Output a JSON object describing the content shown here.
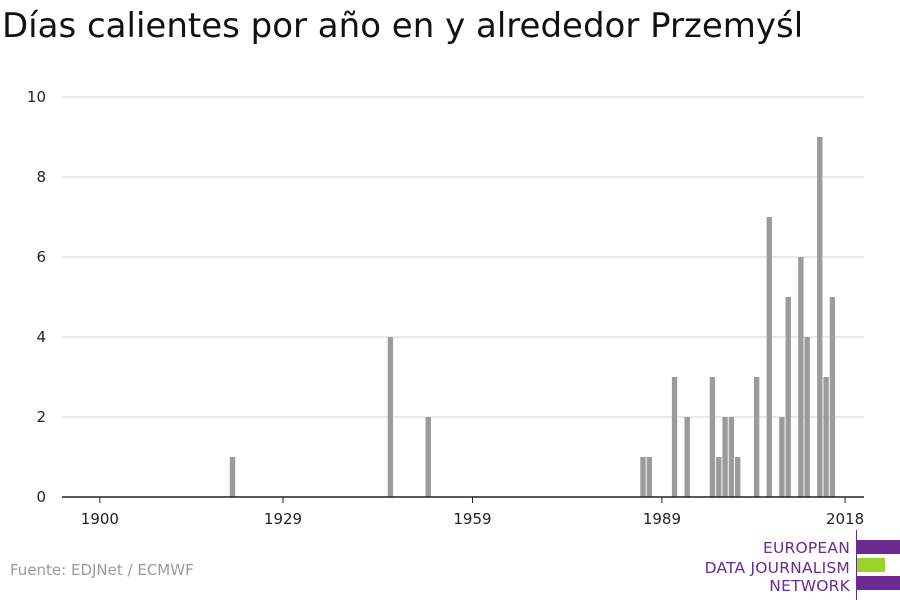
{
  "title": "Días calientes por año en y alrededor Przemyśl",
  "source": "Fuente: EDJNet / ECMWF",
  "logo": {
    "lines": [
      "EUROPEAN",
      "DATA JOURNALISM",
      "NETWORK"
    ],
    "purple": "#6a2a8e",
    "green": "#9bd12a"
  },
  "chart_data": {
    "type": "bar",
    "title": "Días calientes por año en y alrededor Przemyśl",
    "xlabel": "",
    "ylabel": "",
    "x_ticks": [
      "1900",
      "1929",
      "1959",
      "1989",
      "2018"
    ],
    "y_ticks": [
      "0",
      "2",
      "4",
      "6",
      "8",
      "10"
    ],
    "xlim": [
      1894,
      2021
    ],
    "ylim": [
      0,
      10
    ],
    "grid": true,
    "bar_color": "#9b9b9b",
    "points": [
      {
        "x": 1921,
        "y": 1
      },
      {
        "x": 1946,
        "y": 4
      },
      {
        "x": 1952,
        "y": 2
      },
      {
        "x": 1986,
        "y": 1
      },
      {
        "x": 1987,
        "y": 1
      },
      {
        "x": 1991,
        "y": 3
      },
      {
        "x": 1993,
        "y": 2
      },
      {
        "x": 1997,
        "y": 3
      },
      {
        "x": 1998,
        "y": 1
      },
      {
        "x": 1999,
        "y": 2
      },
      {
        "x": 2000,
        "y": 2
      },
      {
        "x": 2001,
        "y": 1
      },
      {
        "x": 2004,
        "y": 3
      },
      {
        "x": 2006,
        "y": 7
      },
      {
        "x": 2008,
        "y": 2
      },
      {
        "x": 2009,
        "y": 5
      },
      {
        "x": 2011,
        "y": 6
      },
      {
        "x": 2012,
        "y": 4
      },
      {
        "x": 2014,
        "y": 9
      },
      {
        "x": 2015,
        "y": 3
      },
      {
        "x": 2016,
        "y": 5
      }
    ]
  }
}
